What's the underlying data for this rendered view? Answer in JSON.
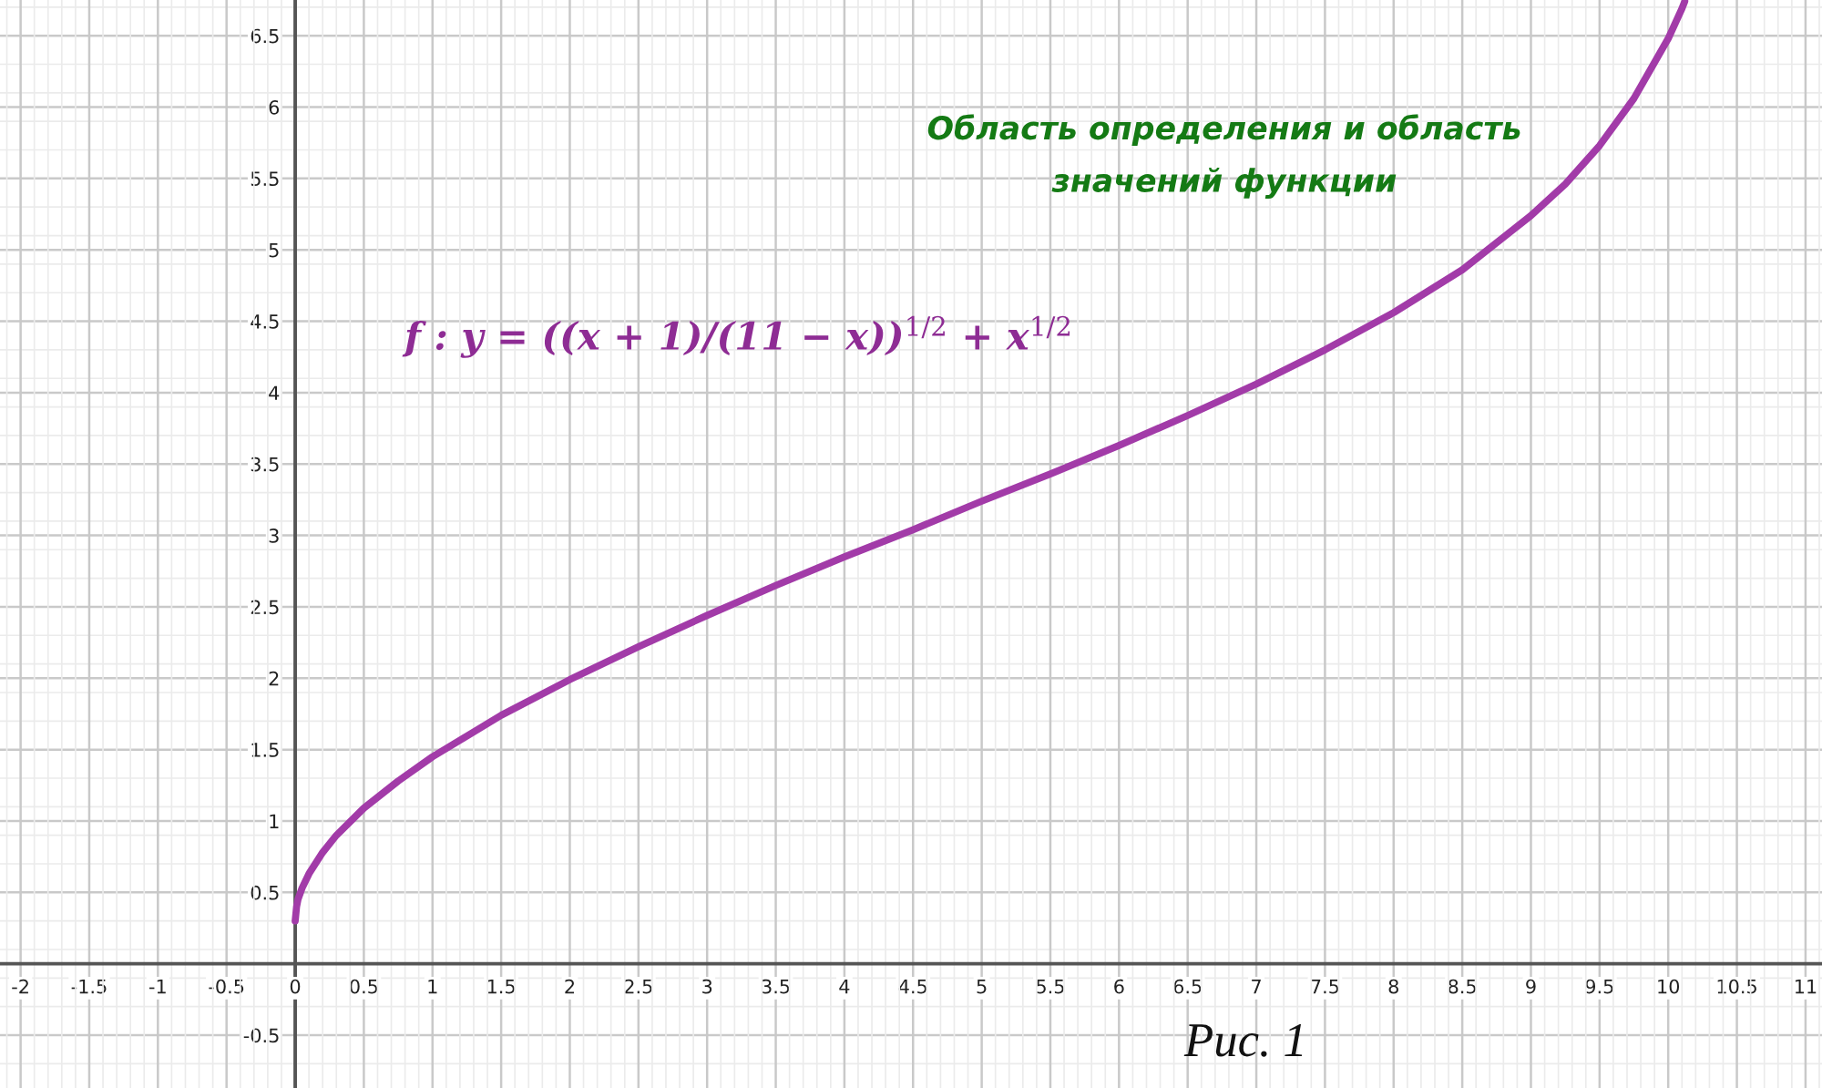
{
  "chart_data": {
    "type": "line",
    "title": "Область определения и область\nзначений функции",
    "annotations": [
      "f : y = ((x + 1)/(11 − x))$^{1/2}$ + x$^{1/2}$",
      "Рис. 1"
    ],
    "x": [
      0,
      0.01,
      0.02,
      0.05,
      0.1,
      0.2,
      0.3,
      0.5,
      0.75,
      1,
      1.5,
      2,
      2.5,
      3,
      3.5,
      4,
      4.5,
      5,
      5.5,
      6,
      6.5,
      7,
      7.5,
      8,
      8.5,
      9,
      9.25,
      9.5,
      9.75,
      10,
      10.1,
      10.12
    ],
    "series": [
      {
        "color": "#a23ba8",
        "values": [
          0.3,
          0.4,
          0.45,
          0.53,
          0.63,
          0.78,
          0.9,
          1.09,
          1.28,
          1.45,
          1.74,
          1.99,
          2.22,
          2.44,
          2.65,
          2.85,
          3.04,
          3.24,
          3.43,
          3.63,
          3.84,
          4.06,
          4.3,
          4.56,
          4.86,
          5.24,
          5.46,
          5.73,
          6.06,
          6.48,
          6.69,
          6.74
        ]
      }
    ],
    "xlim": [
      -2.15,
      11.12
    ],
    "ylim": [
      -0.87,
      6.75
    ],
    "xticks": [
      -2,
      -1.5,
      -1,
      -0.5,
      0,
      0.5,
      1,
      1.5,
      2,
      2.5,
      3,
      3.5,
      4,
      4.5,
      5,
      5.5,
      6,
      6.5,
      7,
      7.5,
      8,
      8.5,
      9,
      9.5,
      10,
      10.5,
      11
    ],
    "yticks": [
      -0.5,
      0.5,
      1,
      1.5,
      2,
      2.5,
      3,
      3.5,
      4,
      4.5,
      5,
      5.5,
      6,
      6.5
    ],
    "grid": true,
    "marker": "none",
    "line_style": "solid"
  }
}
